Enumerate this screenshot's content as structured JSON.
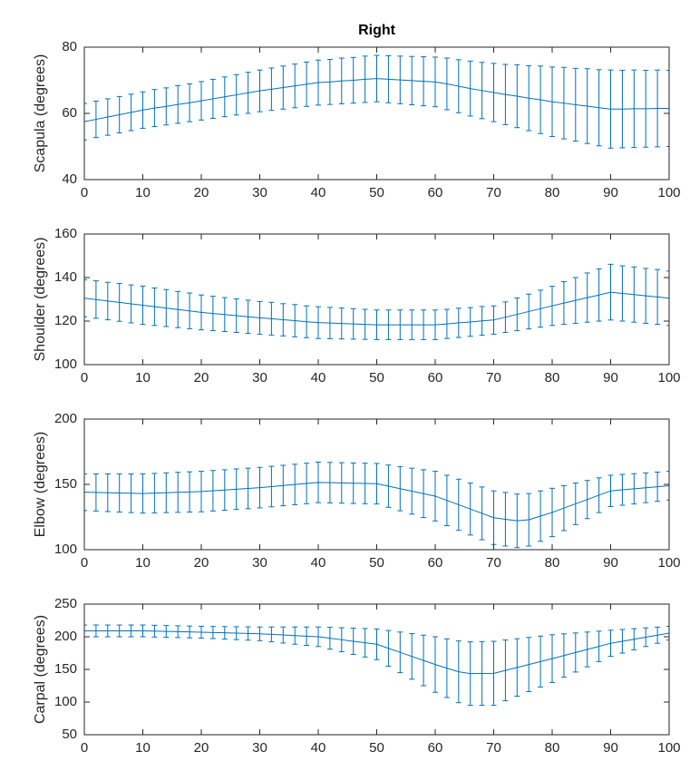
{
  "chart_data": [
    {
      "type": "errorbar",
      "title": "Right",
      "ylabel": "Scapula (degrees)",
      "color": "#0072BD",
      "x": [
        0,
        2,
        4,
        6,
        8,
        10,
        12,
        14,
        16,
        18,
        20,
        22,
        24,
        26,
        28,
        30,
        32,
        34,
        36,
        38,
        40,
        42,
        44,
        46,
        48,
        50,
        52,
        54,
        56,
        58,
        60,
        62,
        64,
        66,
        68,
        70,
        72,
        74,
        76,
        78,
        80,
        82,
        84,
        86,
        88,
        90,
        92,
        94,
        96,
        98,
        100
      ],
      "values": [
        57.5,
        58.2,
        58.9,
        59.6,
        60.3,
        61,
        61.6,
        62.1,
        62.7,
        63.2,
        63.8,
        64.4,
        65,
        65.6,
        66.2,
        66.8,
        67.3,
        67.8,
        68.3,
        68.8,
        69.3,
        69.5,
        69.8,
        70,
        70.3,
        70.5,
        70.3,
        70.1,
        69.9,
        69.7,
        69.5,
        68.9,
        68.2,
        67.5,
        66.9,
        66.3,
        65.7,
        65.2,
        64.6,
        64.1,
        63.5,
        63.1,
        62.6,
        62.2,
        61.7,
        61.3,
        61.3,
        61.4,
        61.4,
        61.5,
        61.5
      ],
      "errors": [
        5.5,
        5.5,
        5.5,
        5.5,
        5.5,
        5.5,
        5.6,
        5.6,
        5.7,
        5.7,
        5.8,
        5.9,
        6,
        6.1,
        6.2,
        6.3,
        6.4,
        6.5,
        6.6,
        6.7,
        6.8,
        6.8,
        6.9,
        6.9,
        7,
        7,
        7.1,
        7.2,
        7.3,
        7.4,
        7.5,
        7.8,
        8,
        8.3,
        8.5,
        8.8,
        9.1,
        9.5,
        9.8,
        10.2,
        10.5,
        10.8,
        11,
        11.3,
        11.5,
        11.8,
        11.7,
        11.7,
        11.6,
        11.6,
        11.5
      ],
      "xlim": [
        0,
        100
      ],
      "xticks": [
        0,
        10,
        20,
        30,
        40,
        50,
        60,
        70,
        80,
        90,
        100
      ],
      "ylim": [
        40,
        80
      ],
      "yticks": [
        40,
        60,
        80
      ]
    },
    {
      "type": "errorbar",
      "ylabel": "Shoulder (degrees)",
      "color": "#0072BD",
      "x": [
        0,
        2,
        4,
        6,
        8,
        10,
        12,
        14,
        16,
        18,
        20,
        22,
        24,
        26,
        28,
        30,
        32,
        34,
        36,
        38,
        40,
        42,
        44,
        46,
        48,
        50,
        52,
        54,
        56,
        58,
        60,
        62,
        64,
        66,
        68,
        70,
        72,
        74,
        76,
        78,
        80,
        82,
        84,
        86,
        88,
        90,
        92,
        94,
        96,
        98,
        100
      ],
      "values": [
        130.5,
        129.9,
        129.2,
        128.6,
        127.9,
        127.3,
        126.6,
        126,
        125.3,
        124.7,
        124,
        123.5,
        123,
        122.5,
        122,
        121.5,
        121.1,
        120.6,
        120.2,
        119.7,
        119.3,
        119.1,
        118.9,
        118.7,
        118.5,
        118.3,
        118.3,
        118.3,
        118.3,
        118.3,
        118.3,
        118.7,
        119.2,
        119.6,
        120.1,
        120.5,
        121.8,
        123.1,
        124.4,
        125.7,
        127,
        128.3,
        129.5,
        130.8,
        132,
        133.3,
        132.7,
        132.2,
        131.6,
        131.1,
        130.5
      ],
      "errors": [
        8.5,
        8.6,
        8.6,
        8.7,
        8.7,
        8.8,
        8.6,
        8.5,
        8.3,
        8.2,
        8,
        7.9,
        7.8,
        7.7,
        7.6,
        7.5,
        7.5,
        7.4,
        7.4,
        7.3,
        7.3,
        7.2,
        7.1,
        7,
        6.9,
        6.8,
        6.8,
        6.8,
        6.8,
        6.8,
        6.8,
        6.7,
        6.7,
        6.6,
        6.6,
        6.5,
        7,
        7.5,
        8,
        8.5,
        9,
        9.8,
        10.5,
        11.3,
        12,
        12.8,
        12.7,
        12.7,
        12.6,
        12.6,
        12.5
      ],
      "xlim": [
        0,
        100
      ],
      "xticks": [
        0,
        10,
        20,
        30,
        40,
        50,
        60,
        70,
        80,
        90,
        100
      ],
      "ylim": [
        100,
        160
      ],
      "yticks": [
        100,
        120,
        140,
        160
      ]
    },
    {
      "type": "errorbar",
      "ylabel": "Elbow (degrees)",
      "color": "#0072BD",
      "x": [
        0,
        2,
        4,
        6,
        8,
        10,
        12,
        14,
        16,
        18,
        20,
        22,
        24,
        26,
        28,
        30,
        32,
        34,
        36,
        38,
        40,
        42,
        44,
        46,
        48,
        50,
        52,
        54,
        56,
        58,
        60,
        62,
        64,
        66,
        68,
        70,
        72,
        74,
        76,
        78,
        80,
        82,
        84,
        86,
        88,
        90,
        92,
        94,
        96,
        98,
        100
      ],
      "values": [
        144,
        143.8,
        143.6,
        143.4,
        143.2,
        143,
        143.3,
        143.6,
        143.9,
        144.2,
        144.5,
        145.1,
        145.7,
        146.3,
        146.9,
        147.5,
        148.3,
        149.1,
        149.9,
        150.7,
        151.5,
        151.3,
        151.1,
        150.9,
        150.7,
        150.5,
        148.6,
        146.7,
        144.8,
        142.9,
        141,
        137.7,
        134.4,
        131.1,
        127.8,
        124.5,
        123.3,
        122.1,
        122.9,
        125.7,
        128.5,
        131.8,
        135.1,
        138.4,
        141.7,
        145,
        145.8,
        146.6,
        147.4,
        148.2,
        149
      ],
      "errors": [
        14,
        14.2,
        14.4,
        14.6,
        14.8,
        15,
        15.1,
        15.2,
        15.3,
        15.4,
        15.5,
        15.5,
        15.5,
        15.5,
        15.5,
        15.5,
        15.5,
        15.5,
        15.5,
        15.5,
        15.5,
        15.5,
        15.5,
        15.5,
        15.5,
        15.5,
        16.2,
        16.9,
        17.6,
        18.3,
        19,
        19.3,
        19.6,
        19.9,
        20.2,
        20.5,
        20.5,
        20.5,
        20.1,
        19.3,
        18.5,
        17.2,
        15.9,
        14.6,
        13.3,
        12,
        11.8,
        11.6,
        11.4,
        11.2,
        11
      ],
      "xlim": [
        0,
        100
      ],
      "xticks": [
        0,
        10,
        20,
        30,
        40,
        50,
        60,
        70,
        80,
        90,
        100
      ],
      "ylim": [
        100,
        200
      ],
      "yticks": [
        100,
        150,
        200
      ]
    },
    {
      "type": "errorbar",
      "ylabel": "Carpal (degrees)",
      "color": "#0072BD",
      "x": [
        0,
        2,
        4,
        6,
        8,
        10,
        12,
        14,
        16,
        18,
        20,
        22,
        24,
        26,
        28,
        30,
        32,
        34,
        36,
        38,
        40,
        42,
        44,
        46,
        48,
        50,
        52,
        54,
        56,
        58,
        60,
        62,
        64,
        66,
        68,
        70,
        72,
        74,
        76,
        78,
        80,
        82,
        84,
        86,
        88,
        90,
        92,
        94,
        96,
        98,
        100
      ],
      "values": [
        209,
        209,
        209,
        209,
        209,
        209,
        208.6,
        208.2,
        207.8,
        207.4,
        207,
        206.5,
        206,
        205.5,
        205,
        204.5,
        203.6,
        202.7,
        201.8,
        200.9,
        200,
        197.7,
        195.4,
        193.1,
        190.8,
        188.5,
        182.3,
        176.1,
        169.9,
        163.7,
        157.5,
        151.9,
        146.3,
        143.6,
        143.8,
        144,
        148.5,
        153,
        157.5,
        162,
        166.5,
        171.2,
        175.9,
        180.6,
        185.3,
        190,
        193.1,
        196.2,
        199.3,
        202.4,
        205.5
      ],
      "errors": [
        9,
        9,
        9,
        9,
        9,
        9,
        9,
        9,
        9,
        9,
        9,
        9.3,
        9.6,
        9.9,
        10.2,
        10.5,
        11.4,
        12.3,
        13.2,
        14.1,
        15,
        16.7,
        18.4,
        20.1,
        21.8,
        23.5,
        27.3,
        31.1,
        34.9,
        38.7,
        42.5,
        44.9,
        47.3,
        48.6,
        48.8,
        49,
        46.5,
        44,
        41.5,
        39,
        36.5,
        33.2,
        29.9,
        26.6,
        23.3,
        20,
        18.1,
        16.2,
        14.3,
        12.4,
        10.5
      ],
      "xlim": [
        0,
        100
      ],
      "xticks": [
        0,
        10,
        20,
        30,
        40,
        50,
        60,
        70,
        80,
        90,
        100
      ],
      "ylim": [
        50,
        250
      ],
      "yticks": [
        50,
        100,
        150,
        200,
        250
      ]
    }
  ]
}
